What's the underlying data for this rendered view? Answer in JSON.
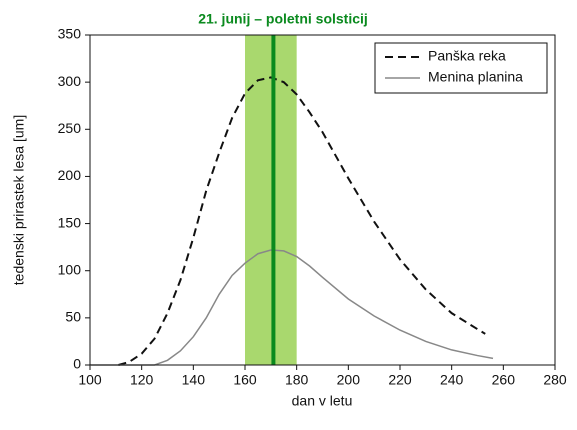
{
  "chart_data": {
    "type": "line",
    "annotation": {
      "text": "21. junij – poletni solsticij",
      "x": 171,
      "band": [
        160,
        180
      ],
      "color": "#0a8a1e",
      "band_color": "#a9d86e"
    },
    "xlabel": "dan v letu",
    "ylabel": "tedenski prirastek lesa [um]",
    "xlim": [
      100,
      280
    ],
    "xticks": [
      100,
      120,
      140,
      160,
      180,
      200,
      220,
      240,
      260,
      280
    ],
    "ylim": [
      0,
      350
    ],
    "yticks": [
      0,
      50,
      100,
      150,
      200,
      250,
      300,
      350
    ],
    "legend": "upper right",
    "series": [
      {
        "name": "Panška reka",
        "color": "#111111",
        "dash": true,
        "x": [
          111,
          115,
          120,
          125,
          130,
          135,
          140,
          145,
          150,
          155,
          160,
          165,
          170,
          175,
          180,
          185,
          190,
          200,
          210,
          220,
          230,
          240,
          250,
          253
        ],
        "values": [
          0,
          3,
          12,
          28,
          55,
          90,
          135,
          185,
          225,
          262,
          288,
          302,
          305,
          300,
          287,
          268,
          247,
          198,
          152,
          112,
          80,
          55,
          38,
          33
        ]
      },
      {
        "name": "Menina planina",
        "color": "#888888",
        "dash": false,
        "x": [
          100,
          125,
          130,
          135,
          140,
          145,
          150,
          155,
          160,
          165,
          170,
          175,
          180,
          185,
          190,
          200,
          210,
          220,
          230,
          240,
          250,
          256
        ],
        "values": [
          0,
          0,
          5,
          15,
          30,
          50,
          75,
          95,
          108,
          118,
          122,
          121,
          115,
          105,
          93,
          70,
          52,
          37,
          25,
          16,
          10,
          7
        ]
      }
    ]
  }
}
